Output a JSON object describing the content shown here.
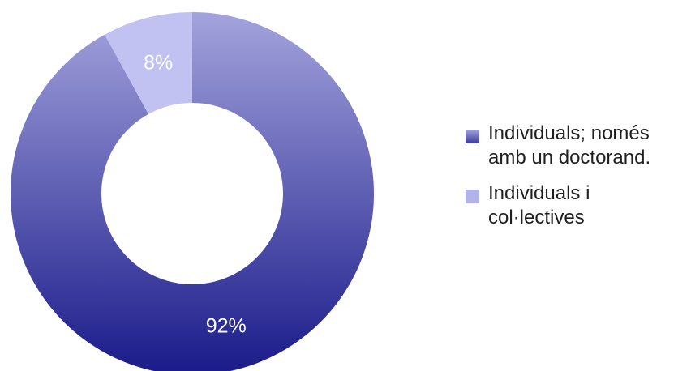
{
  "chart_data": {
    "type": "pie",
    "donut": true,
    "title": "",
    "categories": [
      "Individuals; només amb un doctorand.",
      "Individuals i col·lectives"
    ],
    "values": [
      92,
      8
    ],
    "data_labels": [
      "92%",
      "8%"
    ],
    "colors": {
      "slice_1_top": "#a3a3dc",
      "slice_1_bottom": "#1a1a8a",
      "slice_2": "#c1c1f2",
      "legend_1": "#3b3b9a",
      "legend_2": "#b3b3ec"
    },
    "legend": {
      "placement": "right",
      "entries": [
        "Individuals; només amb un doctorand.",
        "Individuals i col·lectives"
      ]
    }
  }
}
